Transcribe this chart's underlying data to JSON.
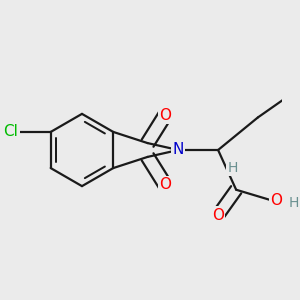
{
  "bg_color": "#ebebeb",
  "atom_colors": {
    "C": "#000000",
    "N": "#0000cc",
    "O": "#ff0000",
    "Cl": "#00bb00",
    "H": "#6a9090"
  },
  "bond_color": "#1a1a1a",
  "bond_width": 1.6,
  "font_size": 11,
  "fig_size": [
    3.0,
    3.0
  ]
}
